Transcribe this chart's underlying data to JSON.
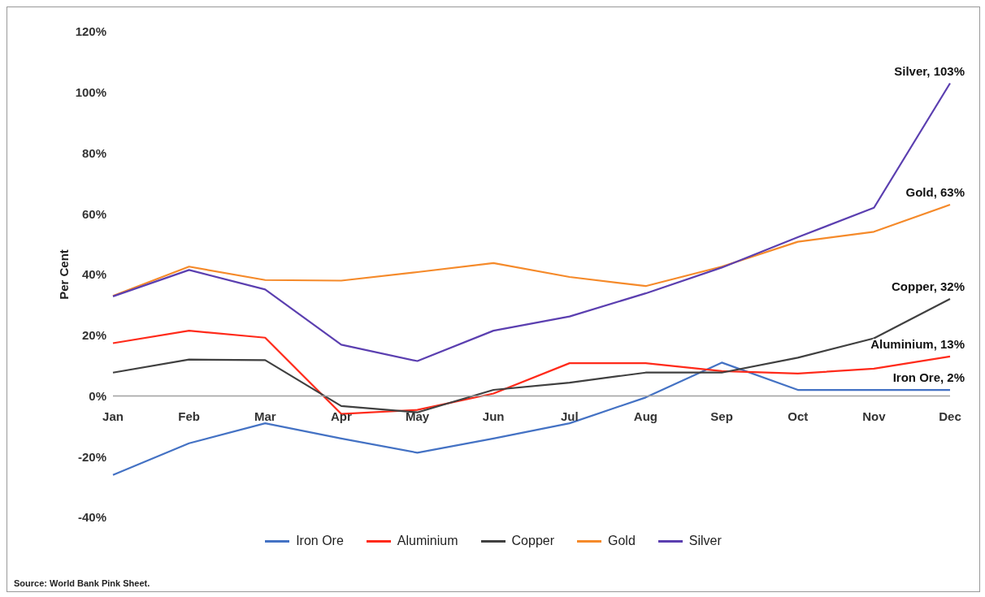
{
  "chart_data": {
    "type": "line",
    "ylabel": "Per Cent",
    "categories": [
      "Jan",
      "Feb",
      "Mar",
      "Apr",
      "May",
      "Jun",
      "Jul",
      "Aug",
      "Sep",
      "Oct",
      "Nov",
      "Dec"
    ],
    "series": [
      {
        "name": "Iron Ore",
        "color": "#4472c4",
        "values": [
          -26,
          -15.6,
          -9,
          -14,
          -18.7,
          -14,
          -9,
          -0.5,
          11,
          2,
          2,
          2
        ]
      },
      {
        "name": "Aluminium",
        "color": "#ff2a1a",
        "values": [
          17.4,
          21.5,
          19.2,
          -5.9,
          -4.6,
          0.8,
          10.8,
          10.8,
          8.2,
          7.4,
          9,
          13
        ]
      },
      {
        "name": "Copper",
        "color": "#404040",
        "values": [
          7.7,
          12,
          11.8,
          -3.3,
          -5.4,
          2,
          4.4,
          7.7,
          7.7,
          12.6,
          19,
          32
        ]
      },
      {
        "name": "Gold",
        "color": "#f58a2a",
        "values": [
          33,
          42.6,
          38.2,
          38,
          40.8,
          43.8,
          39.2,
          36.2,
          42.6,
          50.8,
          54.1,
          63
        ]
      },
      {
        "name": "Silver",
        "color": "#5b3fb0",
        "values": [
          32.8,
          41.5,
          35.1,
          16.9,
          11.5,
          21.5,
          26.2,
          33.8,
          42.3,
          52.3,
          62,
          103
        ]
      }
    ],
    "ylim": [
      -40,
      120
    ],
    "yticks": [
      {
        "value": -40,
        "label": "-40%"
      },
      {
        "value": -20,
        "label": "-20%"
      },
      {
        "value": 0,
        "label": "0%"
      },
      {
        "value": 20,
        "label": "20%"
      },
      {
        "value": 40,
        "label": "40%"
      },
      {
        "value": 60,
        "label": "60%"
      },
      {
        "value": 80,
        "label": "80%"
      },
      {
        "value": 100,
        "label": "100%"
      },
      {
        "value": 120,
        "label": "120%"
      }
    ],
    "grid": false,
    "legend": "bottom",
    "marker": "none",
    "line_style": "solid",
    "annotations": [
      {
        "text": "Silver, 103%",
        "x": "Dec",
        "y": 103
      },
      {
        "text": "Gold, 63%",
        "x": "Dec",
        "y": 63
      },
      {
        "text": "Copper, 32%",
        "x": "Dec",
        "y": 32
      },
      {
        "text": "Aluminium, 13%",
        "x": "Dec",
        "y": 13
      },
      {
        "text": "Iron Ore, 2%",
        "x": "Dec",
        "y": 2
      },
      "Source: World Bank Pink Sheet."
    ]
  }
}
